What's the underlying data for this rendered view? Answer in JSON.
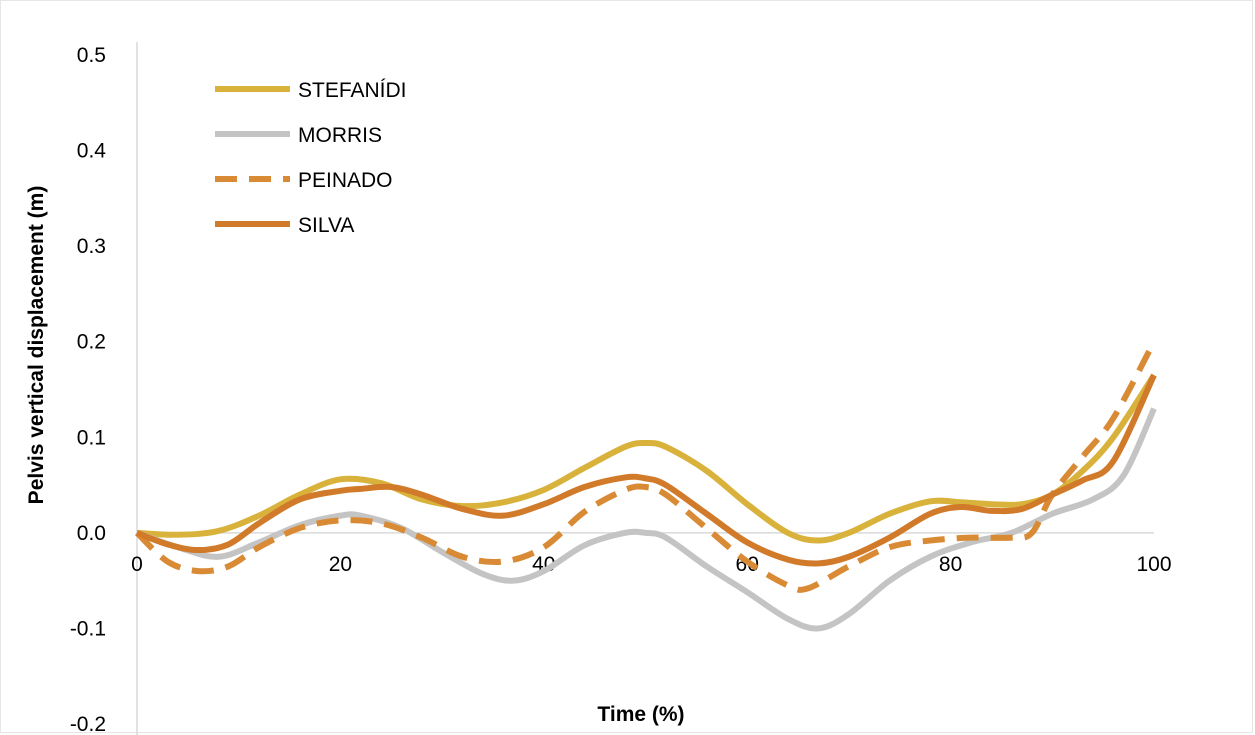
{
  "chart_data": {
    "type": "line",
    "xlabel": "Time (%)",
    "ylabel": "Pelvis vertical displacement (m)",
    "xlim": [
      0,
      100
    ],
    "ylim": [
      -0.2,
      0.5
    ],
    "x_ticks": [
      0,
      20,
      40,
      60,
      80,
      100
    ],
    "x_tick_labels": [
      "0",
      "20",
      "40",
      "60",
      "80",
      "100"
    ],
    "y_ticks": [
      0.5,
      0.4,
      0.3,
      0.2,
      0.1,
      0.0,
      -0.1,
      -0.2
    ],
    "y_tick_labels": [
      "0.5",
      "0.4",
      "0.3",
      "0.2",
      "0.1",
      "0.0",
      "-0.1",
      "-0.2"
    ],
    "grid": false,
    "legend_position": "top-left",
    "series": [
      {
        "name": "STEFANÍDI",
        "color": "#d8b23b",
        "dash": "solid",
        "x": [
          0,
          4,
          8,
          12,
          16,
          20,
          24,
          28,
          32,
          36,
          40,
          44,
          48,
          50,
          52,
          56,
          60,
          64,
          67,
          70,
          74,
          78,
          81,
          84,
          87,
          90,
          93,
          96,
          100
        ],
        "y": [
          0.0,
          -0.002,
          0.002,
          0.018,
          0.04,
          0.056,
          0.052,
          0.035,
          0.028,
          0.032,
          0.045,
          0.068,
          0.09,
          0.094,
          0.09,
          0.065,
          0.03,
          0.0,
          -0.008,
          0.0,
          0.02,
          0.033,
          0.032,
          0.03,
          0.03,
          0.04,
          0.065,
          0.1,
          0.165
        ]
      },
      {
        "name": "MORRIS",
        "color": "#c4c4c4",
        "dash": "solid",
        "x": [
          0,
          4,
          8,
          12,
          16,
          20,
          22,
          26,
          30,
          34,
          37,
          40,
          44,
          48,
          50,
          52,
          56,
          60,
          64,
          67,
          70,
          74,
          78,
          82,
          86,
          90,
          94,
          97,
          100
        ],
        "y": [
          0.0,
          -0.015,
          -0.025,
          -0.01,
          0.008,
          0.018,
          0.018,
          0.005,
          -0.02,
          -0.043,
          -0.05,
          -0.04,
          -0.013,
          0.0,
          0.0,
          -0.005,
          -0.035,
          -0.062,
          -0.09,
          -0.1,
          -0.085,
          -0.05,
          -0.025,
          -0.01,
          0.0,
          0.02,
          0.035,
          0.06,
          0.13
        ]
      },
      {
        "name": "PEINADO",
        "color": "#d98a34",
        "dash": "dashed",
        "x": [
          0,
          3,
          6,
          9,
          12,
          16,
          20,
          24,
          28,
          32,
          36,
          40,
          44,
          48,
          50,
          52,
          56,
          60,
          64,
          66,
          70,
          74,
          78,
          82,
          86,
          88,
          90,
          93,
          96,
          100
        ],
        "y": [
          0.0,
          -0.03,
          -0.04,
          -0.035,
          -0.015,
          0.005,
          0.013,
          0.01,
          -0.005,
          -0.025,
          -0.03,
          -0.015,
          0.022,
          0.045,
          0.048,
          0.04,
          0.005,
          -0.03,
          -0.055,
          -0.058,
          -0.035,
          -0.015,
          -0.008,
          -0.005,
          -0.005,
          0.0,
          0.04,
          0.08,
          0.12,
          0.2
        ]
      },
      {
        "name": "SILVA",
        "color": "#d07a2a",
        "dash": "solid",
        "x": [
          0,
          3,
          6,
          9,
          12,
          16,
          20,
          22,
          25,
          28,
          32,
          36,
          40,
          44,
          48,
          50,
          52,
          56,
          60,
          64,
          67,
          70,
          74,
          78,
          81,
          84,
          87,
          90,
          93,
          96,
          100
        ],
        "y": [
          0.0,
          -0.012,
          -0.018,
          -0.012,
          0.01,
          0.035,
          0.044,
          0.046,
          0.048,
          0.04,
          0.025,
          0.018,
          0.03,
          0.048,
          0.058,
          0.057,
          0.05,
          0.02,
          -0.01,
          -0.028,
          -0.032,
          -0.025,
          -0.005,
          0.02,
          0.027,
          0.023,
          0.025,
          0.04,
          0.055,
          0.075,
          0.165
        ]
      }
    ]
  }
}
